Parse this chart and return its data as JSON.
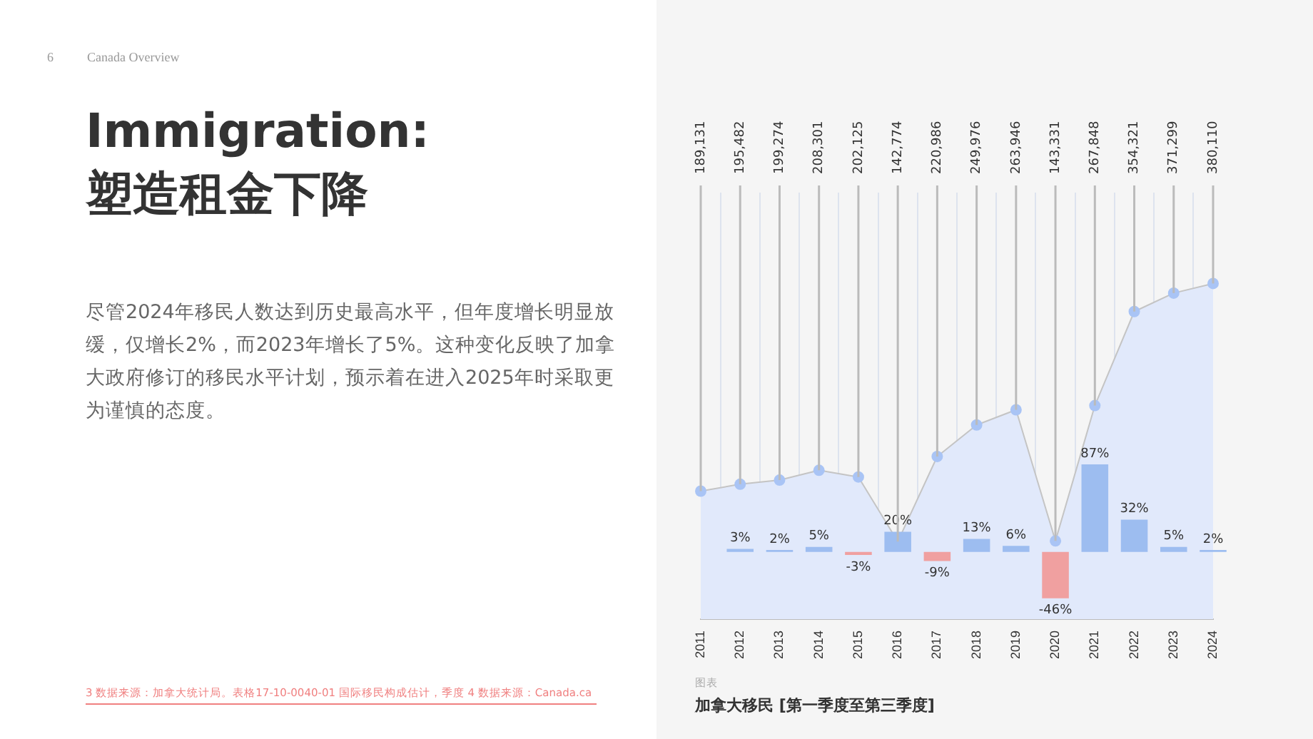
{
  "chart_data": {
    "type": "bar",
    "title": "Immigration: 塑造租金下降",
    "subtitle": "尽管2024年移民人数达到历史最高水平，但年度增长明显放缓，仅增长2%，而2023年增长了5%。这种变化反映了加拿大政府修订的移民水平计划，预示着在进入2025年时采取更为谨慎的态度。",
    "annotations": [
      "6",
      "Canada Overview",
      "图表",
      "加拿大移民 [第一季度至第三季度]",
      "3 数据来源：加拿大统计局。表格17-10-0040-01 国际移民构成估计，季度 4 数据来源：Canada.ca"
    ],
    "categories": [
      "2011",
      "2012",
      "2013",
      "2014",
      "2015",
      "2016",
      "2017",
      "2018",
      "2019",
      "2020",
      "2021",
      "2022",
      "2023",
      "2024"
    ],
    "series": [
      {
        "values": [
          null,
          3,
          2,
          5,
          -3,
          20,
          -9,
          13,
          6,
          -46,
          87,
          32,
          5,
          2
        ],
        "colors": [
          "#9dbdf0",
          "#9dbdf0",
          "#9dbdf0",
          "#9dbdf0",
          "#f0a0a0",
          "#9dbdf0",
          "#f0a0a0",
          "#9dbdf0",
          "#9dbdf0",
          "#f0a0a0",
          "#9dbdf0",
          "#9dbdf0",
          "#9dbdf0",
          "#9dbdf0"
        ],
        "value_labels": [
          null,
          "3%",
          "2%",
          "5%",
          "-3%",
          "20%",
          "-9%",
          "13%",
          "6%",
          "-46%",
          "87%",
          "32%",
          "5%",
          "2%"
        ]
      },
      {
        "type": "area",
        "axis": "y2",
        "color": "#e1e9fb",
        "values": [
          189131,
          195482,
          199274,
          208301,
          202125,
          142774,
          220986,
          249976,
          263946,
          143331,
          267848,
          354321,
          371299,
          380110
        ],
        "value_labels": [
          "189,131",
          "195,482",
          "199,274",
          "208,301",
          "202,125",
          "142,774",
          "220,986",
          "249,976",
          "263,946",
          "143,331",
          "267,848",
          "354,321",
          "371,299",
          "380,110"
        ]
      }
    ],
    "marker": "circle",
    "grid": "x",
    "legend": false,
    "tick_labels": "x"
  }
}
